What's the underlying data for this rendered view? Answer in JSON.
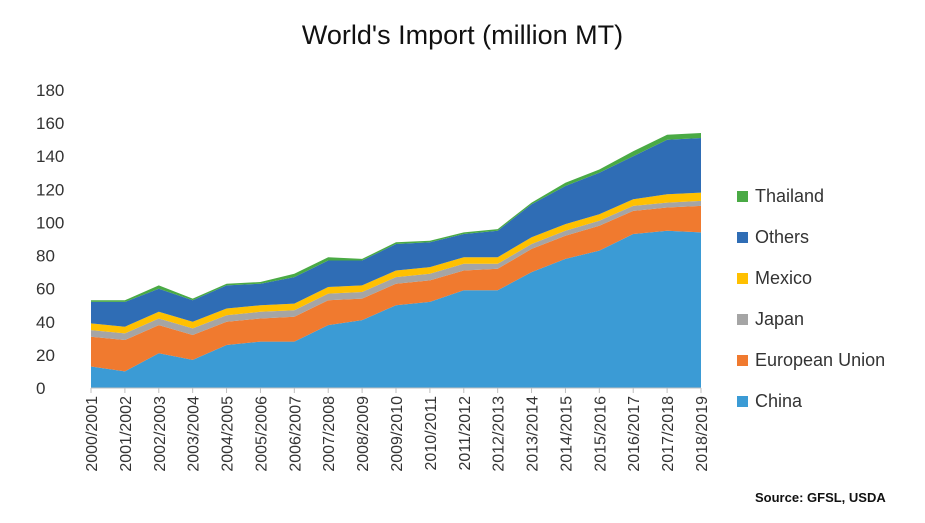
{
  "chart_data": {
    "type": "area",
    "stacked": true,
    "title": "World's Import (million MT)",
    "categories": [
      "2000/2001",
      "2001/2002",
      "2002/2003",
      "2003/2004",
      "2004/2005",
      "2005/2006",
      "2006/2007",
      "2007/2008",
      "2008/2009",
      "2009/2010",
      "2010/2011",
      "2011/2012",
      "2012/2013",
      "2013/2014",
      "2014/2015",
      "2015/2016",
      "2016/2017",
      "2017/2018",
      "2018/2019"
    ],
    "ylim": [
      0,
      180
    ],
    "yticks": [
      0,
      20,
      40,
      60,
      80,
      100,
      120,
      140,
      160,
      180
    ],
    "grid": false,
    "legend_position": "right",
    "series": [
      {
        "name": "China",
        "color": "#3b9bd5",
        "values": [
          13,
          10,
          21,
          17,
          26,
          28,
          28,
          38,
          41,
          50,
          52,
          59,
          59,
          70,
          78,
          83,
          93,
          95,
          94
        ]
      },
      {
        "name": "European Union",
        "color": "#f07a2f",
        "values": [
          18,
          19,
          17,
          15,
          14,
          14,
          15,
          15,
          13,
          13,
          13,
          12,
          13,
          14,
          14,
          15,
          14,
          14,
          16
        ]
      },
      {
        "name": "Japan",
        "color": "#a5a5a5",
        "values": [
          4,
          4,
          4,
          4,
          4,
          4,
          4,
          4,
          4,
          4,
          4,
          4,
          3,
          3,
          3,
          3,
          3,
          3,
          3
        ]
      },
      {
        "name": "Mexico",
        "color": "#ffc000",
        "values": [
          4,
          4,
          4,
          4,
          4,
          4,
          4,
          4,
          4,
          4,
          4,
          4,
          4,
          4,
          4,
          4,
          4,
          5,
          5
        ]
      },
      {
        "name": "Others",
        "color": "#2f6db5",
        "values": [
          13,
          15,
          14,
          13,
          14,
          13,
          16,
          16,
          15,
          16,
          15,
          14,
          16,
          20,
          23,
          25,
          26,
          33,
          33
        ]
      },
      {
        "name": "Thailand",
        "color": "#4aaa45",
        "values": [
          1,
          1,
          2,
          1,
          1,
          1,
          2,
          2,
          1,
          1,
          1,
          1,
          1,
          1,
          2,
          2,
          3,
          3,
          3
        ]
      }
    ]
  },
  "source": "Source: GFSL, USDA"
}
